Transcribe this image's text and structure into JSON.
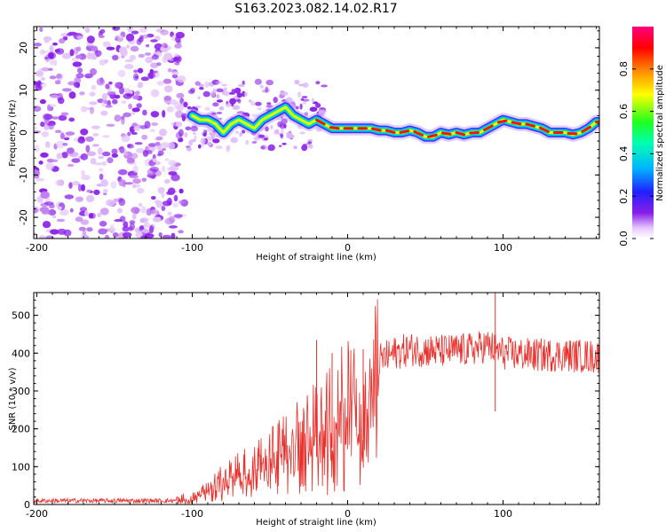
{
  "title": "S163.2023.082.14.02.R17",
  "colors": {
    "snr_line": "#e8302c",
    "blob": "#8a20e8",
    "spectrogram_track": [
      "#ff0000",
      "#ffff00",
      "#00ff60",
      "#00c8ff",
      "#3020ff"
    ]
  },
  "chart_data": [
    {
      "type": "heatmap",
      "name": "spectrogram",
      "xlabel": "Height of straight line (km)",
      "ylabel": "Frequency (Hz)",
      "xlim": [
        -202,
        162
      ],
      "ylim": [
        -25,
        25
      ],
      "xticks": [
        -200,
        -100,
        0,
        100
      ],
      "xtick_labels": [
        "-200",
        "-100",
        "0",
        "100"
      ],
      "yticks": [
        -20,
        -10,
        0,
        10,
        20
      ],
      "ytick_labels": [
        "-20",
        "-10",
        "0",
        "10",
        "20"
      ],
      "track": {
        "x": [
          -100,
          -95,
          -90,
          -85,
          -80,
          -75,
          -70,
          -65,
          -60,
          -55,
          -50,
          -45,
          -40,
          -35,
          -30,
          -25,
          -20,
          -15,
          -10,
          -5,
          0,
          5,
          10,
          15,
          20,
          25,
          30,
          35,
          40,
          45,
          50,
          55,
          60,
          65,
          70,
          75,
          80,
          85,
          90,
          95,
          100,
          105,
          110,
          115,
          120,
          125,
          130,
          135,
          140,
          145,
          150,
          155,
          160
        ],
        "y": [
          4,
          3,
          3,
          2,
          0,
          2,
          3,
          2,
          1,
          3,
          4,
          5,
          6,
          4,
          3,
          2,
          3,
          2,
          1,
          1,
          1,
          1,
          1,
          1,
          0.5,
          0.5,
          0,
          0,
          0.5,
          0,
          -1,
          -1,
          0,
          -0.5,
          0,
          -0.5,
          0,
          0,
          1,
          2,
          3,
          2.5,
          2,
          2,
          1.5,
          1,
          0,
          0,
          0,
          -0.5,
          0,
          1,
          2.5
        ]
      },
      "noise_region": {
        "x_start": -202,
        "x_end": -105
      }
    },
    {
      "type": "colorbar",
      "name": "amplitude-scale",
      "label": "Normalized spectral amplitude",
      "range": [
        0,
        1
      ],
      "ticks": [
        0.0,
        0.2,
        0.4,
        0.6,
        0.8
      ],
      "tick_labels": [
        "0.0",
        "0.2",
        "0.4",
        "0.6",
        "0.8"
      ]
    },
    {
      "type": "line",
      "name": "snr",
      "xlabel": "Height of straight line (km)",
      "ylabel": "SNR (10 * v/v)",
      "xlim": [
        -202,
        162
      ],
      "ylim": [
        0,
        560
      ],
      "xticks": [
        -200,
        -100,
        0,
        100
      ],
      "xtick_labels": [
        "-200",
        "-100",
        "0",
        "100"
      ],
      "yticks": [
        0,
        100,
        200,
        300,
        400,
        500
      ],
      "ytick_labels": [
        "0",
        "100",
        "200",
        "300",
        "400",
        "500"
      ],
      "envelope": {
        "x": [
          -202,
          -110,
          -100,
          -90,
          -80,
          -70,
          -60,
          -50,
          -40,
          -30,
          -20,
          -10,
          0,
          5,
          10,
          15,
          20,
          30,
          40,
          60,
          80,
          90,
          100,
          120,
          140,
          162
        ],
        "y": [
          10,
          10,
          20,
          40,
          70,
          90,
          110,
          130,
          160,
          190,
          210,
          250,
          290,
          270,
          200,
          310,
          380,
          400,
          410,
          405,
          410,
          420,
          400,
          395,
          395,
          390
        ]
      },
      "spikes": [
        {
          "x": -20,
          "y": 435
        },
        {
          "x": -10,
          "y": 400
        },
        {
          "x": 10,
          "y": 410
        },
        {
          "x": 95,
          "y": 560
        }
      ]
    }
  ]
}
